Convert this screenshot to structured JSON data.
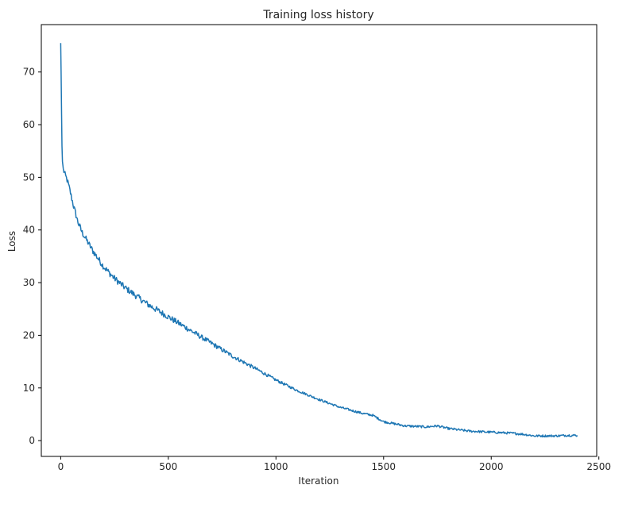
{
  "chart_data": {
    "type": "line",
    "title": "Training loss history",
    "xlabel": "Iteration",
    "ylabel": "Loss",
    "xlim": [
      -90,
      2490
    ],
    "ylim": [
      -3,
      79
    ],
    "xticks": [
      0,
      500,
      1000,
      1500,
      2000,
      2500
    ],
    "yticks": [
      0,
      10,
      20,
      30,
      40,
      50,
      60,
      70
    ],
    "grid": false,
    "line_color": "#1f77b4",
    "noise": 0.6,
    "series": [
      {
        "points": [
          [
            0,
            75.5
          ],
          [
            2,
            70
          ],
          [
            4,
            62
          ],
          [
            6,
            56
          ],
          [
            8,
            53
          ],
          [
            12,
            51.5
          ],
          [
            20,
            50.5
          ],
          [
            30,
            49.5
          ],
          [
            40,
            48
          ],
          [
            60,
            44.5
          ],
          [
            80,
            41.5
          ],
          [
            100,
            39.5
          ],
          [
            150,
            36
          ],
          [
            200,
            33
          ],
          [
            250,
            30.8
          ],
          [
            300,
            29
          ],
          [
            400,
            26
          ],
          [
            500,
            23.5
          ],
          [
            600,
            21
          ],
          [
            700,
            18.5
          ],
          [
            800,
            16
          ],
          [
            900,
            13.8
          ],
          [
            1000,
            11.5
          ],
          [
            1100,
            9.5
          ],
          [
            1200,
            7.8
          ],
          [
            1300,
            6.3
          ],
          [
            1400,
            5.2
          ],
          [
            1450,
            4.8
          ],
          [
            1500,
            3.6
          ],
          [
            1600,
            2.8
          ],
          [
            1700,
            2.6
          ],
          [
            1750,
            2.8
          ],
          [
            1800,
            2.3
          ],
          [
            1900,
            1.8
          ],
          [
            2000,
            1.6
          ],
          [
            2100,
            1.4
          ],
          [
            2150,
            1.2
          ],
          [
            2200,
            0.9
          ],
          [
            2300,
            0.9
          ],
          [
            2350,
            1.0
          ],
          [
            2400,
            1.0
          ]
        ]
      }
    ]
  }
}
